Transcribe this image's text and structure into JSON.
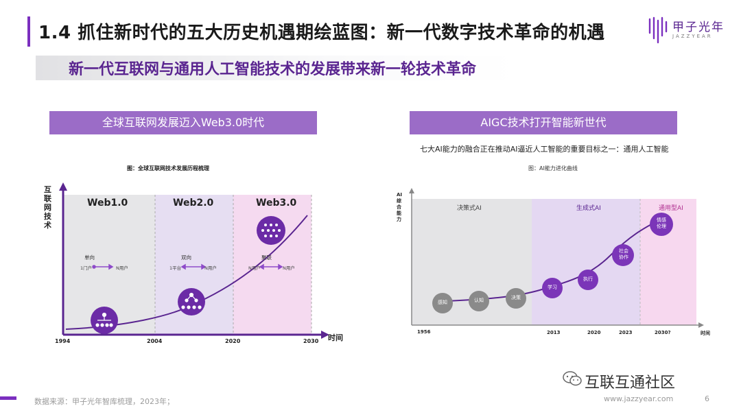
{
  "header": {
    "title": "1.4 抓住新时代的五大历史机遇期绘蓝图：新一代数字技术革命的机遇",
    "subtitle": "新一代互联网与通用人工智能技术的发展带来新一轮技术革命",
    "logo_text": "甲子光年",
    "logo_sub": "JAZZYEAR"
  },
  "left_panel": {
    "header": "全球互联网发展迈入Web3.0时代",
    "fig_caption": "图：全球互联网技术发展历程梳理",
    "chart_data": {
      "type": "line",
      "y_label": "互联网技术",
      "x_label": "时间",
      "x_ticks": [
        "1994",
        "2004",
        "2020",
        "2030"
      ],
      "eras": [
        {
          "name": "Web1.0",
          "from": "1994",
          "to": "2004",
          "mode": "单向",
          "src": "1门户",
          "dst": "N用户",
          "color": "#e6e6e8"
        },
        {
          "name": "Web2.0",
          "from": "2004",
          "to": "2020",
          "mode": "双向",
          "src": "1平台",
          "dst": "N用户",
          "color": "#e6def2"
        },
        {
          "name": "Web3.0",
          "from": "2020",
          "to": "2030",
          "mode": "聚联",
          "src": "N用户",
          "dst": "N用户",
          "color": "#f5daf0"
        }
      ]
    }
  },
  "right_panel": {
    "header": "AIGC技术打开智能新世代",
    "desc": "七大AI能力的融合正在推动AI逼近人工智能的重要目标之一：通用人工智能",
    "fig_caption": "图：AI能力进化曲线",
    "chart_data": {
      "type": "line",
      "y_label": "AI综合能力",
      "x_label": "时间",
      "x_ticks": [
        "1956",
        "2013",
        "2020",
        "2023",
        "2030?"
      ],
      "phases": [
        {
          "name": "决策式AI",
          "color": "#e4e4e6"
        },
        {
          "name": "生成式AI",
          "color": "#e4d8f2"
        },
        {
          "name": "通用型AI",
          "color": "#f7d8ef"
        }
      ],
      "abilities": [
        "感知",
        "认知",
        "决策",
        "学习",
        "执行",
        "社会协作",
        "情感伦理"
      ]
    }
  },
  "footer": {
    "source": "数据来源：甲子光年智库梳理，2023年；",
    "wechat": "互联互通社区",
    "website": "www.jazzyear.com",
    "page": "6"
  },
  "colors": {
    "accent": "#7b2fbf",
    "panel_header": "#9b6cc7",
    "curve": "#5a2590"
  }
}
